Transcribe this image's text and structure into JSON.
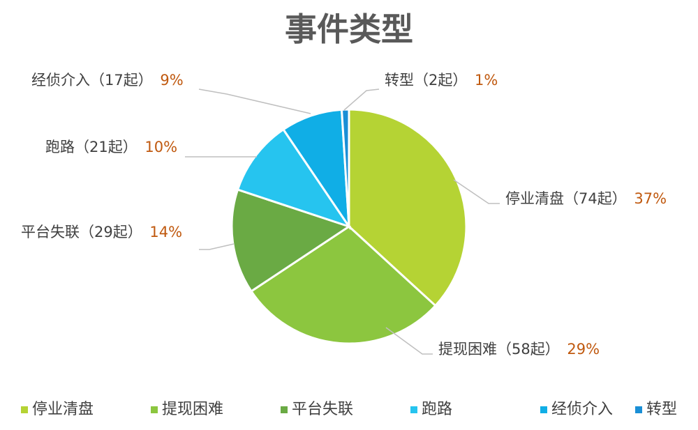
{
  "chart_data": {
    "type": "pie",
    "title": "事件类型",
    "unit": "起",
    "slices": [
      {
        "label": "停业清盘",
        "value": 74,
        "count_text": "（74起）",
        "percent": "37%",
        "color": "#b5d334"
      },
      {
        "label": "提现困难",
        "value": 58,
        "count_text": "（58起）",
        "percent": "29%",
        "color": "#8cc63f"
      },
      {
        "label": "平台失联",
        "value": 29,
        "count_text": "（29起）",
        "percent": "14%",
        "color": "#6aaa44"
      },
      {
        "label": "跑路",
        "value": 21,
        "count_text": "（21起）",
        "percent": "10%",
        "color": "#26c4ef"
      },
      {
        "label": "经侦介入",
        "value": 17,
        "count_text": "（17起）",
        "percent": "9%",
        "color": "#10aee6"
      },
      {
        "label": "转型",
        "value": 2,
        "count_text": "（2起）",
        "percent": "1%",
        "color": "#1a8fd6"
      }
    ],
    "legend_placement": "bottom"
  }
}
